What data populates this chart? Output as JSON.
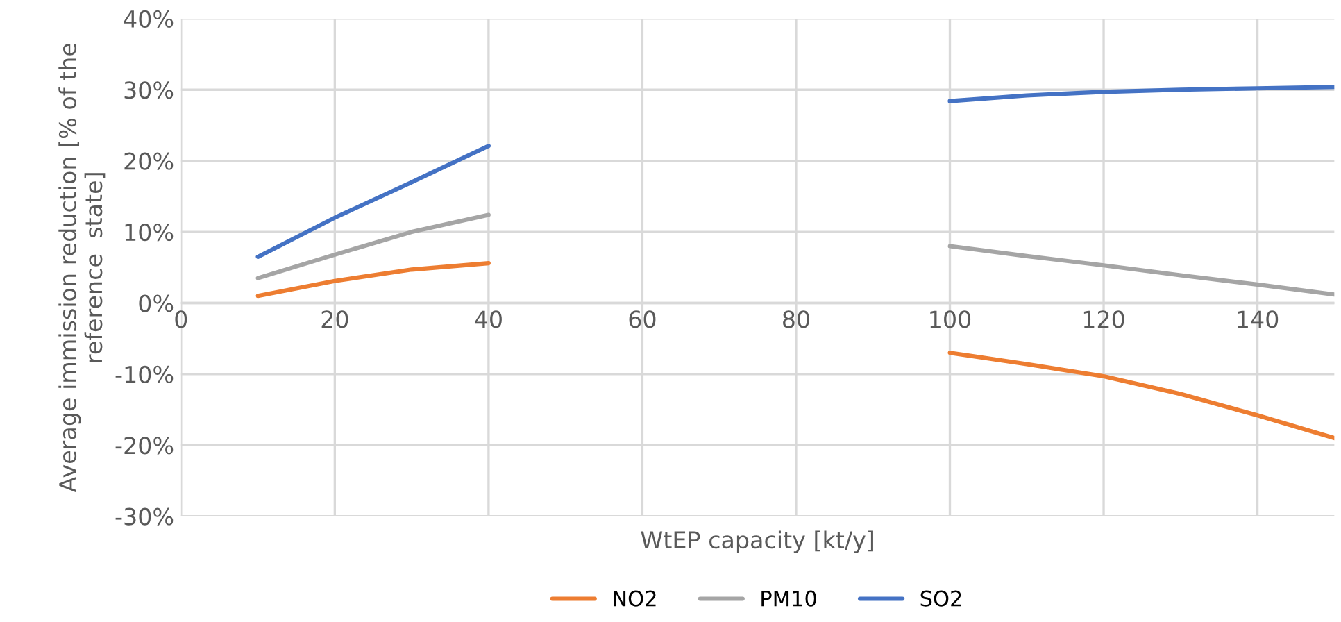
{
  "chart_data": {
    "type": "line",
    "xlabel": "WtEP capacity [kt/y]",
    "ylabel": "Average immission reduction [% of the reference  state]",
    "x": [
      10,
      20,
      30,
      40,
      100,
      110,
      120,
      130,
      140,
      150
    ],
    "series": [
      {
        "name": "NO2",
        "color": "#ed7d31",
        "values": [
          1,
          3.1,
          4.7,
          5.6,
          -7,
          -8.6,
          -10.3,
          -12.8,
          -15.8,
          -19
        ]
      },
      {
        "name": "PM10",
        "color": "#a5a5a5",
        "values": [
          3.5,
          6.8,
          10,
          12.4,
          8,
          6.6,
          5.3,
          3.9,
          2.6,
          1.2
        ]
      },
      {
        "name": "SO2",
        "color": "#4472c4",
        "values": [
          6.5,
          12,
          17,
          22.1,
          28.4,
          29.2,
          29.7,
          30,
          30.2,
          30.4
        ]
      }
    ],
    "xlim": [
      0,
      150
    ],
    "xticks": [
      0,
      20,
      40,
      60,
      80,
      100,
      120,
      140
    ],
    "ylim": [
      -30,
      40
    ],
    "yticks": [
      {
        "value": -30,
        "label": "-30%"
      },
      {
        "value": -20,
        "label": "-20%"
      },
      {
        "value": -10,
        "label": "-10%"
      },
      {
        "value": 0,
        "label": "0%"
      },
      {
        "value": 10,
        "label": "10%"
      },
      {
        "value": 20,
        "label": "20%"
      },
      {
        "value": 30,
        "label": "30%"
      },
      {
        "value": 40,
        "label": "40%"
      }
    ],
    "grid": true,
    "legend": "bottom",
    "marker": "none",
    "line_style": "solid"
  }
}
